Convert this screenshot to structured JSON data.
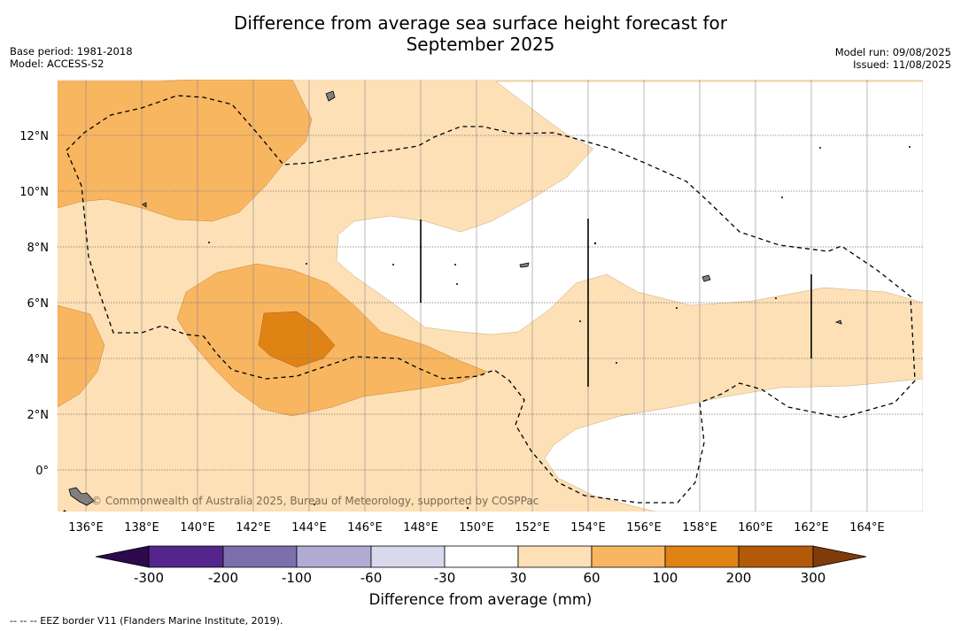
{
  "title": "Difference from average sea surface height forecast for\nSeptember 2025",
  "meta": {
    "base_period": "Base period: 1981-2018",
    "model": "Model: ACCESS-S2",
    "model_run": "Model run: 09/08/2025",
    "issued": "Issued: 11/08/2025"
  },
  "map": {
    "lon_ticks": [
      "136°E",
      "138°E",
      "140°E",
      "142°E",
      "144°E",
      "146°E",
      "148°E",
      "150°E",
      "152°E",
      "154°E",
      "156°E",
      "158°E",
      "160°E",
      "162°E",
      "164°E"
    ],
    "lat_ticks": [
      "12°N",
      "10°N",
      "8°N",
      "6°N",
      "4°N",
      "2°N",
      "0°"
    ],
    "credit": "© Commonwealth of Australia 2025, Bureau of Meteorology, supported by COSPPac",
    "colors": {
      "range_30_60": "#fde0b6",
      "range_60_100": "#f8b660",
      "range_100_200": "#e08315",
      "near_zero": "#ffffff",
      "land": "#7f7f7f"
    }
  },
  "colorbar": {
    "label": "Difference from average (mm)",
    "ticks": [
      "-300",
      "-200",
      "-100",
      "-60",
      "-30",
      "30",
      "60",
      "100",
      "200",
      "300"
    ],
    "colors": [
      "#2c0a4b",
      "#54258a",
      "#7c6fab",
      "#b0abd3",
      "#d9d9ed",
      "#ffffff",
      "#fde0b6",
      "#f8b660",
      "#e08315",
      "#b35a0a",
      "#7f3b08"
    ]
  },
  "footnote": "--  --  -- EEZ border V11 (Flanders Marine Institute, 2019)."
}
